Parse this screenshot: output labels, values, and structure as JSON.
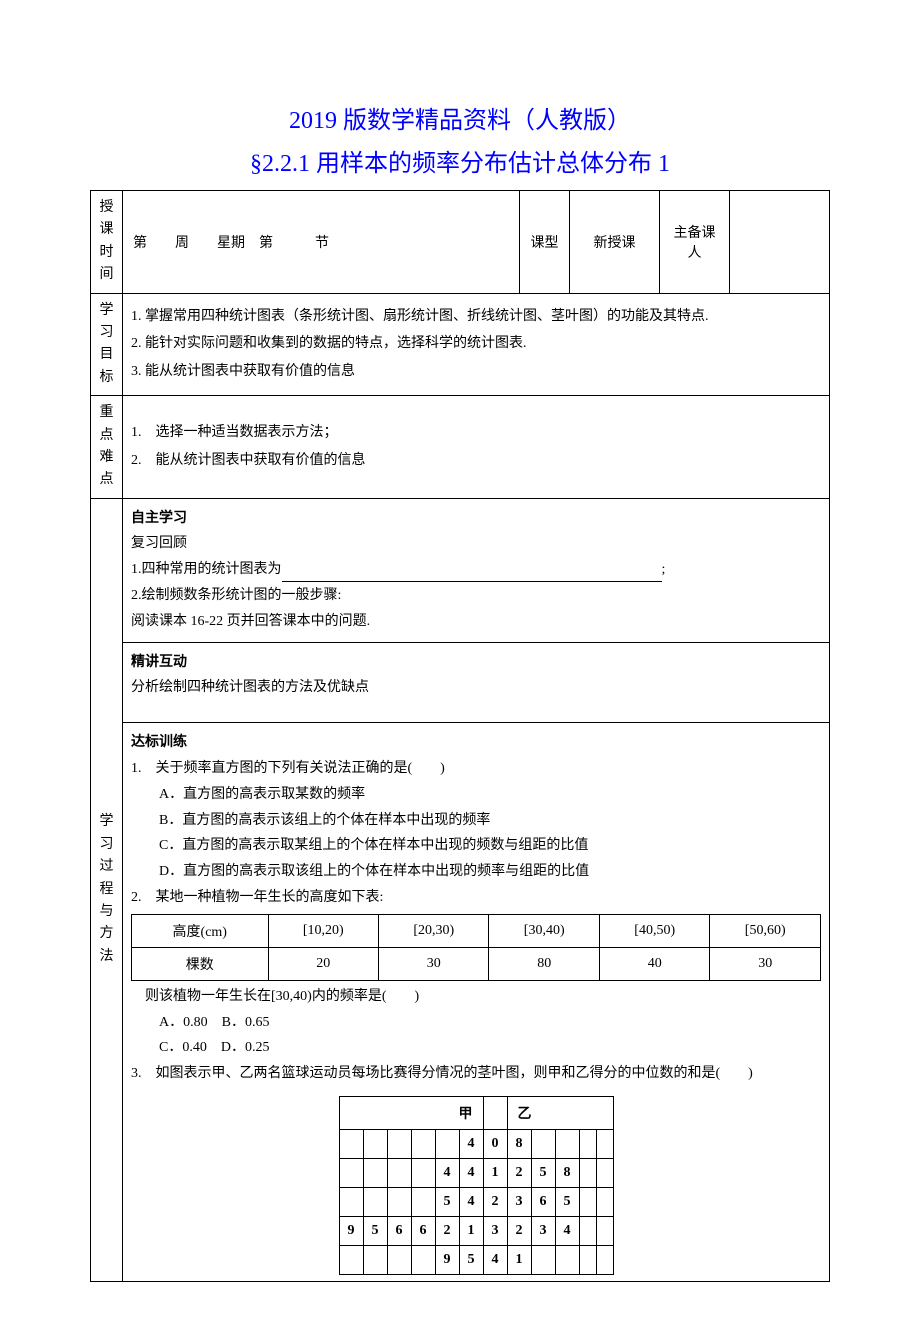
{
  "titles": {
    "line1": "2019 版数学精品资料（人教版）",
    "line2": "§2.2.1 用样本的频率分布估计总体分布 1"
  },
  "header_row": {
    "label_time": "授\n课\n时\n间",
    "schedule": "第　　周　　星期　第　　　节",
    "ktype_label": "课型",
    "ktype_value": "新授课",
    "prep_label": "主备课\n人",
    "prep_value": ""
  },
  "goals": {
    "label": "学\n习\n目\n标",
    "g1": "1. 掌握常用四种统计图表（条形统计图、扇形统计图、折线统计图、茎叶图）的功能及其特点.",
    "g2": "2. 能针对实际问题和收集到的数据的特点，选择科学的统计图表.",
    "g3": "3. 能从统计图表中获取有价值的信息"
  },
  "difficulties": {
    "label": "重\n点\n难\n点",
    "d1": "1.　选择一种适当数据表示方法；",
    "d2": "2.　能从统计图表中获取有价值的信息"
  },
  "process": {
    "label": "学\n习\n过\n程\n与\n方\n法",
    "self_study": {
      "title": "自主学习",
      "l1": "复习回顾",
      "l2_prefix": "1.四种常用的统计图表为",
      "l2_suffix": ";",
      "l2_blank_width": 380,
      "l3": "2.绘制频数条形统计图的一般步骤:",
      "l4": "阅读课本 16-22 页并回答课本中的问题."
    },
    "lecture": {
      "title": "精讲互动",
      "l1": "分析绘制四种统计图表的方法及优缺点"
    },
    "practice": {
      "title": "达标训练",
      "q1": {
        "stem": "1.　关于频率直方图的下列有关说法正确的是(　　)",
        "a": "A．直方图的高表示取某数的频率",
        "b": "B．直方图的高表示该组上的个体在样本中出现的频率",
        "c": "C．直方图的高表示取某组上的个体在样本中出现的频数与组距的比值",
        "d": "D．直方图的高表示取该组上的个体在样本中出现的频率与组距的比值"
      },
      "q2": {
        "stem": "2.　某地一种植物一年生长的高度如下表:",
        "table": {
          "headers": [
            "高度(cm)",
            "[10,20)",
            "[20,30)",
            "[30,40)",
            "[40,50)",
            "[50,60)"
          ],
          "row_label": "棵数",
          "values": [
            "20",
            "30",
            "80",
            "40",
            "30"
          ]
        },
        "followup": "　则该植物一年生长在[30,40)内的频率是(　　)",
        "optAB": "A．0.80　B．0.65",
        "optCD": "C．0.40　D．0.25"
      },
      "q3": {
        "stem": "3.　如图表示甲、乙两名篮球运动员每场比赛得分情况的茎叶图，则甲和乙得分的中位数的和是(　　)",
        "stemleaf": {
          "header_left": "甲",
          "header_right": "乙",
          "rows": [
            {
              "left": [
                "",
                "",
                "",
                "",
                "4"
              ],
              "stem": "0",
              "right": [
                "8",
                "",
                "",
                "",
                ""
              ]
            },
            {
              "left": [
                "",
                "",
                "",
                "4",
                "4"
              ],
              "stem": "1",
              "right": [
                "2",
                "5",
                "8",
                "",
                ""
              ]
            },
            {
              "left": [
                "",
                "",
                "",
                "5",
                "4"
              ],
              "stem": "2",
              "right": [
                "3",
                "6",
                "5",
                "",
                ""
              ]
            },
            {
              "left": [
                "9",
                "5",
                "6",
                "6",
                "2",
                "1"
              ],
              "stem": "3",
              "right": [
                "2",
                "3",
                "4",
                "",
                ""
              ]
            },
            {
              "left": [
                "",
                "",
                "",
                "9",
                "5"
              ],
              "stem": "4",
              "right": [
                "1",
                "",
                "",
                "",
                ""
              ]
            }
          ]
        }
      }
    }
  }
}
